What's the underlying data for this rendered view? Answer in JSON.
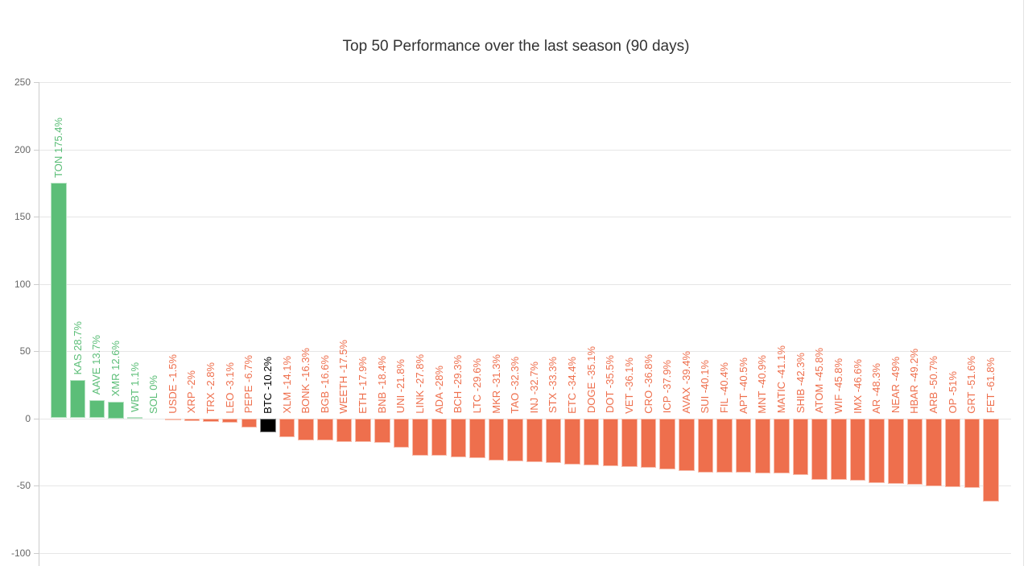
{
  "chart_data": {
    "type": "bar",
    "title": "Top 50 Performance over the last season (90 days)",
    "xlabel": "",
    "ylabel": "",
    "unit": "%",
    "ylim": [
      -100,
      250
    ],
    "yticks": [
      250,
      200,
      150,
      100,
      50,
      0,
      -50,
      -100
    ],
    "grid": true,
    "legend": false,
    "colors": {
      "positive": "#5cbe78",
      "negative": "#ee6f4d",
      "btc": "#000000",
      "gridline": "#e6e6e6",
      "axis": "#cccccc",
      "tick_label": "#666666",
      "title": "#333333"
    },
    "entries": [
      {
        "symbol": "TON",
        "value": 175.4,
        "label": "TON 175.4%",
        "color": "positive"
      },
      {
        "symbol": "KAS",
        "value": 28.7,
        "label": "KAS 28.7%",
        "color": "positive"
      },
      {
        "symbol": "AAVE",
        "value": 13.7,
        "label": "AAVE 13.7%",
        "color": "positive"
      },
      {
        "symbol": "XMR",
        "value": 12.6,
        "label": "XMR 12.6%",
        "color": "positive"
      },
      {
        "symbol": "WBT",
        "value": 1.1,
        "label": "WBT 1.1%",
        "color": "positive"
      },
      {
        "symbol": "SOL",
        "value": 0,
        "label": "SOL 0%",
        "color": "positive"
      },
      {
        "symbol": "USDE",
        "value": -1.5,
        "label": "USDE -1.5%",
        "color": "negative"
      },
      {
        "symbol": "XRP",
        "value": -2,
        "label": "XRP -2%",
        "color": "negative"
      },
      {
        "symbol": "TRX",
        "value": -2.8,
        "label": "TRX -2.8%",
        "color": "negative"
      },
      {
        "symbol": "LEO",
        "value": -3.1,
        "label": "LEO -3.1%",
        "color": "negative"
      },
      {
        "symbol": "PEPE",
        "value": -6.7,
        "label": "PEPE -6.7%",
        "color": "negative"
      },
      {
        "symbol": "BTC",
        "value": -10.2,
        "label": "BTC -10.2%",
        "color": "btc"
      },
      {
        "symbol": "XLM",
        "value": -14.1,
        "label": "XLM -14.1%",
        "color": "negative"
      },
      {
        "symbol": "BONK",
        "value": -16.3,
        "label": "BONK -16.3%",
        "color": "negative"
      },
      {
        "symbol": "BGB",
        "value": -16.6,
        "label": "BGB -16.6%",
        "color": "negative"
      },
      {
        "symbol": "WEETH",
        "value": -17.5,
        "label": "WEETH -17.5%",
        "color": "negative"
      },
      {
        "symbol": "ETH",
        "value": -17.9,
        "label": "ETH -17.9%",
        "color": "negative"
      },
      {
        "symbol": "BNB",
        "value": -18.4,
        "label": "BNB -18.4%",
        "color": "negative"
      },
      {
        "symbol": "UNI",
        "value": -21.8,
        "label": "UNI -21.8%",
        "color": "negative"
      },
      {
        "symbol": "LINK",
        "value": -27.8,
        "label": "LINK -27.8%",
        "color": "negative"
      },
      {
        "symbol": "ADA",
        "value": -28,
        "label": "ADA -28%",
        "color": "negative"
      },
      {
        "symbol": "BCH",
        "value": -29.3,
        "label": "BCH -29.3%",
        "color": "negative"
      },
      {
        "symbol": "LTC",
        "value": -29.6,
        "label": "LTC -29.6%",
        "color": "negative"
      },
      {
        "symbol": "MKR",
        "value": -31.3,
        "label": "MKR -31.3%",
        "color": "negative"
      },
      {
        "symbol": "TAO",
        "value": -32.3,
        "label": "TAO -32.3%",
        "color": "negative"
      },
      {
        "symbol": "INJ",
        "value": -32.7,
        "label": "INJ -32.7%",
        "color": "negative"
      },
      {
        "symbol": "STX",
        "value": -33.3,
        "label": "STX -33.3%",
        "color": "negative"
      },
      {
        "symbol": "ETC",
        "value": -34.4,
        "label": "ETC -34.4%",
        "color": "negative"
      },
      {
        "symbol": "DOGE",
        "value": -35.1,
        "label": "DOGE -35.1%",
        "color": "negative"
      },
      {
        "symbol": "DOT",
        "value": -35.5,
        "label": "DOT -35.5%",
        "color": "negative"
      },
      {
        "symbol": "VET",
        "value": -36.1,
        "label": "VET -36.1%",
        "color": "negative"
      },
      {
        "symbol": "CRO",
        "value": -36.8,
        "label": "CRO -36.8%",
        "color": "negative"
      },
      {
        "symbol": "ICP",
        "value": -37.9,
        "label": "ICP -37.9%",
        "color": "negative"
      },
      {
        "symbol": "AVAX",
        "value": -39.4,
        "label": "AVAX -39.4%",
        "color": "negative"
      },
      {
        "symbol": "SUI",
        "value": -40.1,
        "label": "SUI -40.1%",
        "color": "negative"
      },
      {
        "symbol": "FIL",
        "value": -40.4,
        "label": "FIL -40.4%",
        "color": "negative"
      },
      {
        "symbol": "APT",
        "value": -40.5,
        "label": "APT -40.5%",
        "color": "negative"
      },
      {
        "symbol": "MNT",
        "value": -40.9,
        "label": "MNT -40.9%",
        "color": "negative"
      },
      {
        "symbol": "MATIC",
        "value": -41.1,
        "label": "MATIC -41.1%",
        "color": "negative"
      },
      {
        "symbol": "SHIB",
        "value": -42.3,
        "label": "SHIB -42.3%",
        "color": "negative"
      },
      {
        "symbol": "ATOM",
        "value": -45.8,
        "label": "ATOM -45.8%",
        "color": "negative"
      },
      {
        "symbol": "WIF",
        "value": -45.8,
        "label": "WIF -45.8%",
        "color": "negative"
      },
      {
        "symbol": "IMX",
        "value": -46.6,
        "label": "IMX -46.6%",
        "color": "negative"
      },
      {
        "symbol": "AR",
        "value": -48.3,
        "label": "AR -48.3%",
        "color": "negative"
      },
      {
        "symbol": "NEAR",
        "value": -49,
        "label": "NEAR -49%",
        "color": "negative"
      },
      {
        "symbol": "HBAR",
        "value": -49.2,
        "label": "HBAR -49.2%",
        "color": "negative"
      },
      {
        "symbol": "ARB",
        "value": -50.7,
        "label": "ARB -50.7%",
        "color": "negative"
      },
      {
        "symbol": "OP",
        "value": -51,
        "label": "OP -51%",
        "color": "negative"
      },
      {
        "symbol": "GRT",
        "value": -51.6,
        "label": "GRT -51.6%",
        "color": "negative"
      },
      {
        "symbol": "FET",
        "value": -61.8,
        "label": "FET -61.8%",
        "color": "negative"
      }
    ]
  }
}
